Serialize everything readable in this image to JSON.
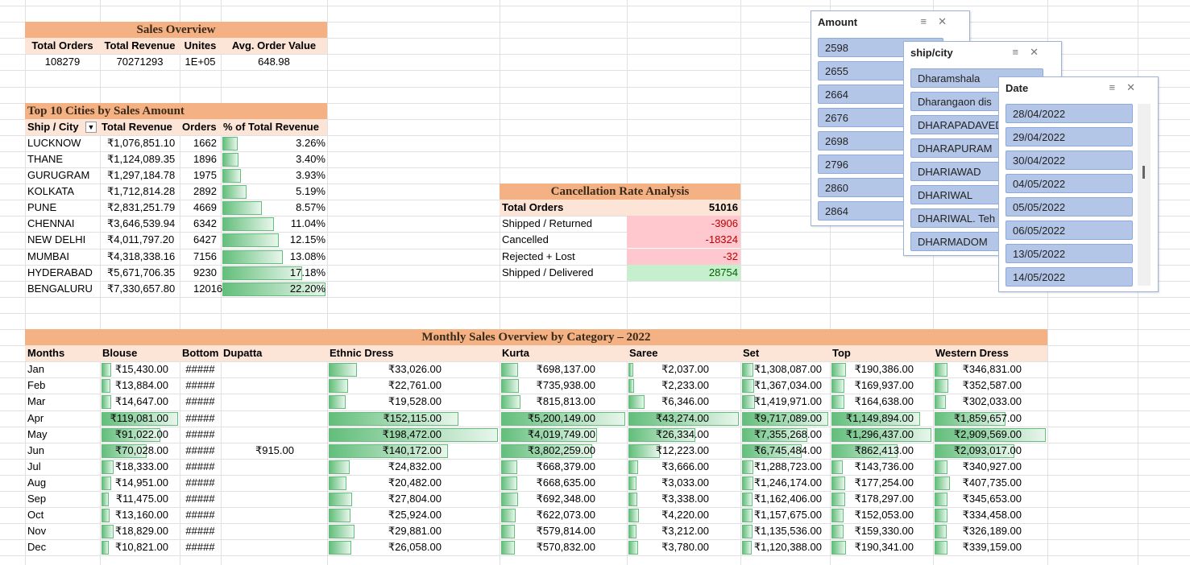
{
  "sales_overview": {
    "title": "Sales Overview",
    "headers": [
      "Total Orders",
      "Total Revenue",
      "Unites",
      "Avg. Order Value"
    ],
    "values": [
      "108279",
      "70271293",
      "1E+05",
      "648.98"
    ]
  },
  "top_cities": {
    "title": "Top 10 Cities by Sales Amount",
    "headers": [
      "Ship / City",
      "Total Revenue",
      "Orders",
      "% of Total Revenue"
    ],
    "rows": [
      [
        "LUCKNOW",
        "₹1,076,851.10",
        "1662",
        "3.26%"
      ],
      [
        "THANE",
        "₹1,124,089.35",
        "1896",
        "3.40%"
      ],
      [
        "GURUGRAM",
        "₹1,297,184.78",
        "1975",
        "3.93%"
      ],
      [
        "KOLKATA",
        "₹1,712,814.28",
        "2892",
        "5.19%"
      ],
      [
        "PUNE",
        "₹2,831,251.79",
        "4669",
        "8.57%"
      ],
      [
        "CHENNAI",
        "₹3,646,539.94",
        "6342",
        "11.04%"
      ],
      [
        "NEW DELHI",
        "₹4,011,797.20",
        "6427",
        "12.15%"
      ],
      [
        "MUMBAI",
        "₹4,318,338.16",
        "7156",
        "13.08%"
      ],
      [
        "HYDERABAD",
        "₹5,671,706.35",
        "9230",
        "17.18%"
      ],
      [
        "BENGALURU",
        "₹7,330,657.80",
        "12016",
        "22.20%"
      ]
    ]
  },
  "cancellation": {
    "title": "Cancellation Rate Analysis",
    "rows": [
      [
        "Total Orders",
        "51016"
      ],
      [
        "Shipped / Returned",
        "-3906"
      ],
      [
        "Cancelled",
        "-18324"
      ],
      [
        "Rejected + Lost",
        "-32"
      ],
      [
        "Shipped / Delivered",
        "28754"
      ]
    ]
  },
  "monthly": {
    "title": "Monthly Sales Overview by Category – 2022",
    "headers": [
      "Months",
      "Blouse",
      "Bottom",
      "Dupatta",
      "Ethnic Dress",
      "Kurta",
      "Saree",
      "Set",
      "Top",
      "Western Dress"
    ],
    "rows": [
      [
        "Jan",
        "₹15,430.00",
        "#####",
        null,
        "₹33,026.00",
        "₹698,137.00",
        "₹2,037.00",
        "₹1,308,087.00",
        "₹190,386.00",
        "₹346,831.00"
      ],
      [
        "Feb",
        "₹13,884.00",
        "#####",
        null,
        "₹22,761.00",
        "₹735,938.00",
        "₹2,233.00",
        "₹1,367,034.00",
        "₹169,937.00",
        "₹352,587.00"
      ],
      [
        "Mar",
        "₹14,647.00",
        "#####",
        null,
        "₹19,528.00",
        "₹815,813.00",
        "₹6,346.00",
        "₹1,419,971.00",
        "₹164,638.00",
        "₹302,033.00"
      ],
      [
        "Apr",
        "₹119,081.00",
        "#####",
        null,
        "₹152,115.00",
        "₹5,200,149.00",
        "₹43,274.00",
        "₹9,717,089.00",
        "₹1,149,894.00",
        "₹1,859,657.00"
      ],
      [
        "May",
        "₹91,022.00",
        "#####",
        null,
        "₹198,472.00",
        "₹4,019,749.00",
        "₹26,334.00",
        "₹7,355,268.00",
        "₹1,296,437.00",
        "₹2,909,569.00"
      ],
      [
        "Jun",
        "₹70,028.00",
        "#####",
        "₹915.00",
        "₹140,172.00",
        "₹3,802,259.00",
        "₹12,223.00",
        "₹6,745,484.00",
        "₹862,413.00",
        "₹2,093,017.00"
      ],
      [
        "Jul",
        "₹18,333.00",
        "#####",
        null,
        "₹24,832.00",
        "₹668,379.00",
        "₹3,666.00",
        "₹1,288,723.00",
        "₹143,736.00",
        "₹340,927.00"
      ],
      [
        "Aug",
        "₹14,951.00",
        "#####",
        null,
        "₹20,482.00",
        "₹668,635.00",
        "₹3,033.00",
        "₹1,246,174.00",
        "₹177,254.00",
        "₹407,735.00"
      ],
      [
        "Sep",
        "₹11,475.00",
        "#####",
        null,
        "₹27,804.00",
        "₹692,348.00",
        "₹3,338.00",
        "₹1,162,406.00",
        "₹178,297.00",
        "₹345,653.00"
      ],
      [
        "Oct",
        "₹13,160.00",
        "#####",
        null,
        "₹25,924.00",
        "₹622,073.00",
        "₹4,220.00",
        "₹1,157,675.00",
        "₹152,053.00",
        "₹334,458.00"
      ],
      [
        "Nov",
        "₹18,829.00",
        "#####",
        null,
        "₹29,881.00",
        "₹579,814.00",
        "₹3,212.00",
        "₹1,135,536.00",
        "₹159,330.00",
        "₹326,189.00"
      ],
      [
        "Dec",
        "₹10,821.00",
        "#####",
        null,
        "₹26,058.00",
        "₹570,832.00",
        "₹3,780.00",
        "₹1,120,388.00",
        "₹190,341.00",
        "₹339,159.00"
      ]
    ]
  },
  "slicers": [
    {
      "title": "Amount",
      "items": [
        "2598",
        "2655",
        "2664",
        "2676",
        "2698",
        "2796",
        "2860",
        "2864"
      ]
    },
    {
      "title": "ship/city",
      "items": [
        "Dharamshala",
        "Dharangaon dis",
        "DHARAPADAVED",
        "DHARAPURAM",
        "DHARIAWAD",
        "DHARIWAL",
        "DHARIWAL. Teh",
        "DHARMADOM"
      ]
    },
    {
      "title": "Date",
      "items": [
        "28/04/2022",
        "29/04/2022",
        "30/04/2022",
        "04/05/2022",
        "05/05/2022",
        "06/05/2022",
        "13/05/2022",
        "14/05/2022"
      ]
    }
  ]
}
